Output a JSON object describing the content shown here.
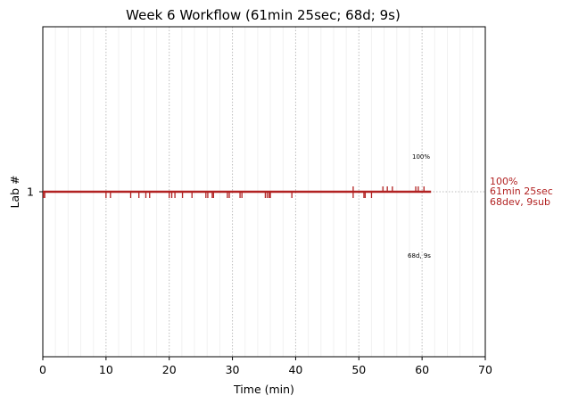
{
  "chart_data": {
    "type": "line",
    "title": "Week 6 Workflow (61min 25sec; 68d; 9s)",
    "xlabel": "Time (min)",
    "ylabel": "Lab #",
    "xlim": [
      0,
      70
    ],
    "xticks": [
      0,
      10,
      20,
      30,
      40,
      50,
      60,
      70
    ],
    "ylim": [
      0,
      2
    ],
    "yticks": [
      1
    ],
    "grid": true,
    "color": "#b22222",
    "series": [
      {
        "y": 1,
        "start": 0,
        "end": 61.42
      }
    ],
    "dev_marks": [
      0.1,
      0.3,
      10.0,
      10.7,
      13.9,
      15.2,
      16.3,
      16.9,
      20.0,
      20.4,
      20.9,
      22.1,
      23.6,
      25.8,
      26.1,
      26.8,
      27.0,
      29.2,
      29.5,
      31.2,
      31.5,
      35.2,
      35.5,
      35.8,
      36.0,
      39.4,
      49.1,
      50.8,
      51.0,
      52.0
    ],
    "sub_marks": [
      49.1,
      53.8,
      54.5,
      55.3,
      59.0,
      59.4,
      60.3
    ],
    "top_label": "100%",
    "bottom_label": "68d, 9s",
    "right_annotation": [
      "100%",
      "61min 25sec",
      "68dev, 9sub"
    ]
  }
}
